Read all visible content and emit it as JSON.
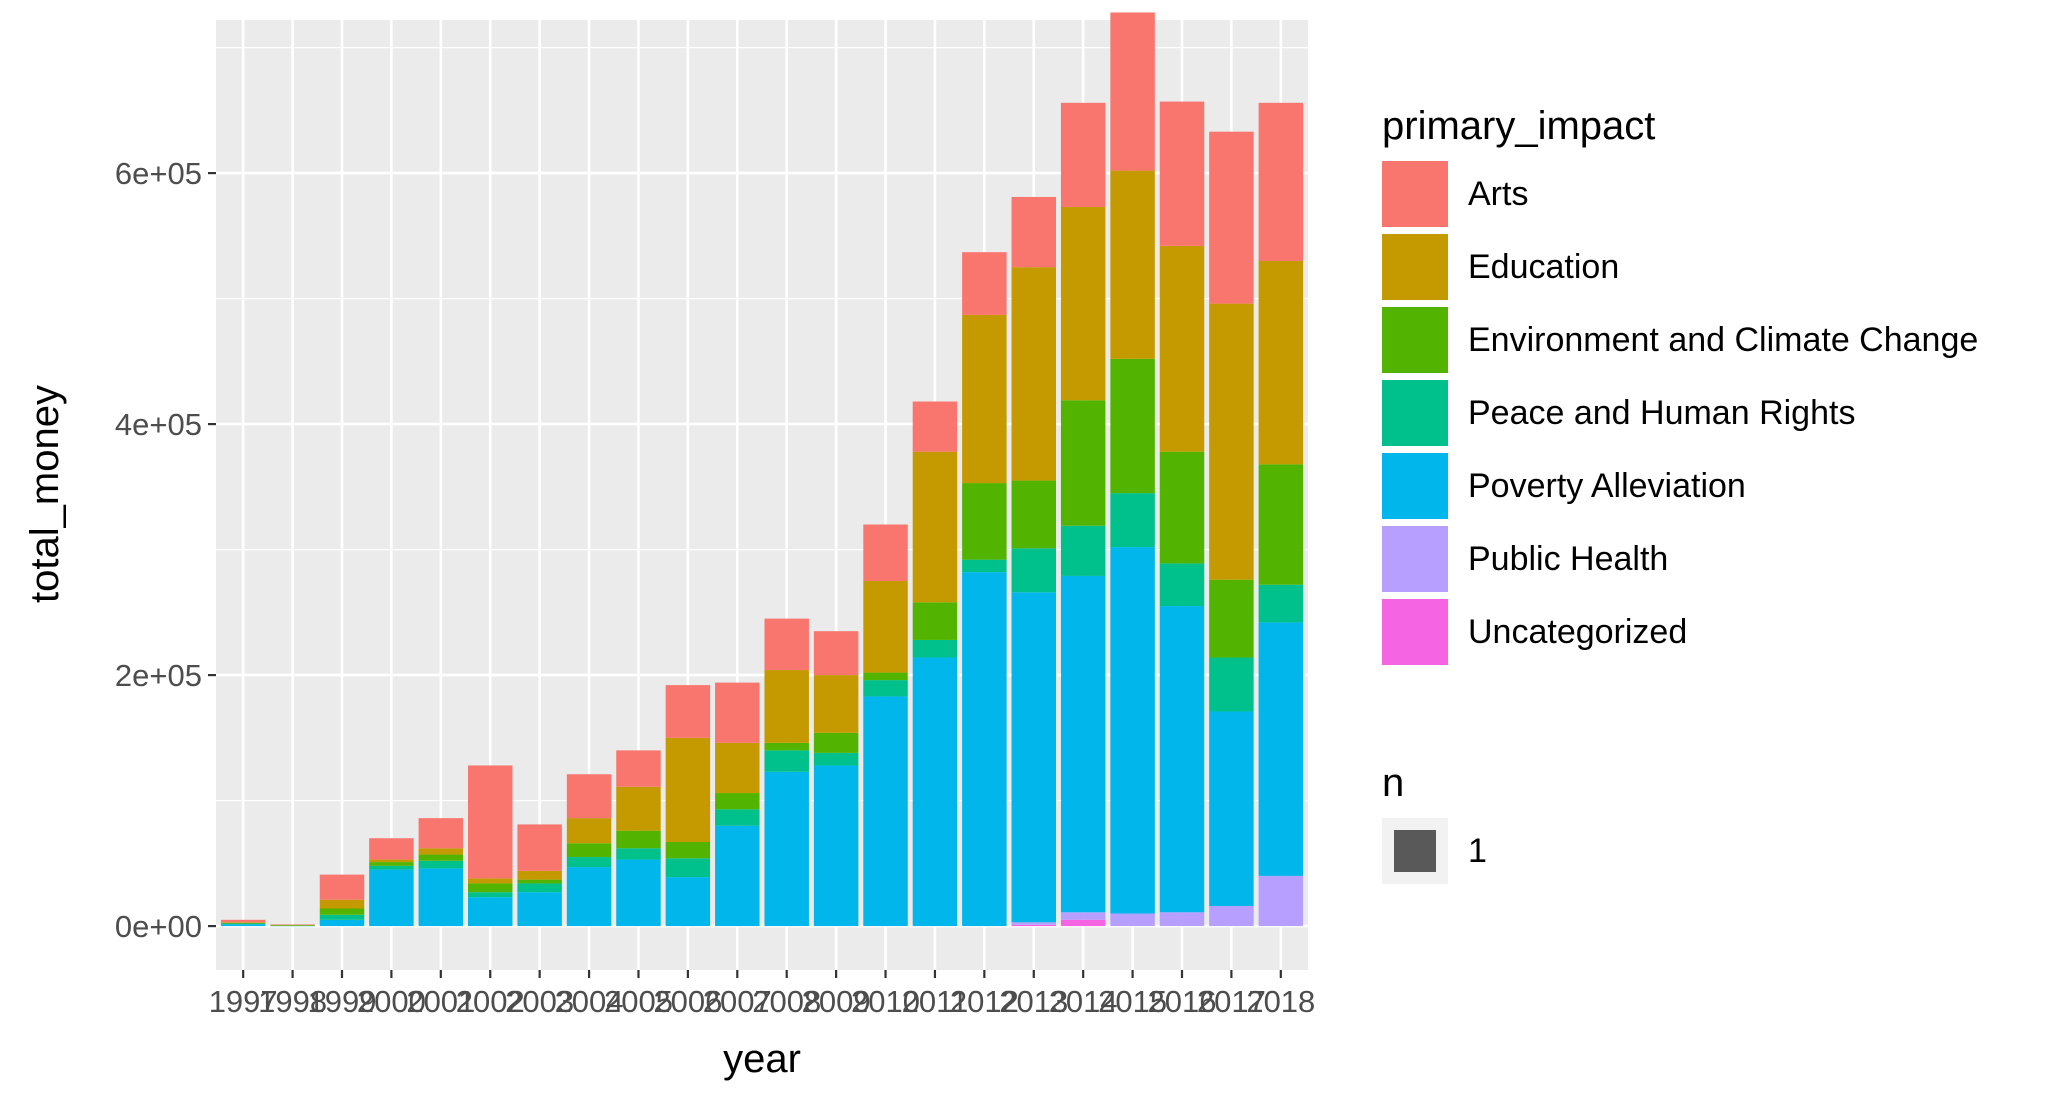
{
  "chart_data": {
    "type": "bar",
    "stacked": true,
    "xlabel": "year",
    "ylabel": "total_money",
    "ylim": [
      -35000,
      722000
    ],
    "y_ticks": [
      0,
      200000,
      400000,
      600000
    ],
    "y_tick_labels": [
      "0e+00",
      "2e+05",
      "4e+05",
      "6e+05"
    ],
    "grid": true,
    "legend_position": "right",
    "categories": [
      "1997",
      "1998",
      "1999",
      "2000",
      "2001",
      "2002",
      "2003",
      "2004",
      "2005",
      "2006",
      "2007",
      "2008",
      "2009",
      "2010",
      "2011",
      "2012",
      "2013",
      "2014",
      "2015",
      "2016",
      "2017",
      "2018"
    ],
    "series": [
      {
        "name": "Uncategorized",
        "color": "#F564E3",
        "values": [
          0,
          0,
          0,
          0,
          0,
          0,
          0,
          0,
          0,
          0,
          0,
          0,
          0,
          0,
          0,
          0,
          1000,
          5000,
          0,
          0,
          0,
          0
        ]
      },
      {
        "name": "Public Health",
        "color": "#B79FFF",
        "values": [
          0,
          0,
          0,
          0,
          0,
          0,
          0,
          0,
          0,
          0,
          0,
          0,
          0,
          0,
          0,
          0,
          2000,
          6000,
          10000,
          11000,
          16000,
          40000
        ]
      },
      {
        "name": "Poverty Alleviation",
        "color": "#00B6EB",
        "values": [
          1500,
          300,
          5000,
          45000,
          46000,
          23000,
          27000,
          47000,
          53000,
          39000,
          80000,
          123000,
          128000,
          183000,
          214000,
          282000,
          263000,
          268000,
          292000,
          244000,
          155000,
          202000
        ]
      },
      {
        "name": "Peace and Human Rights",
        "color": "#00C08B",
        "values": [
          500,
          200,
          4000,
          3000,
          6000,
          4000,
          7000,
          8000,
          9000,
          15000,
          13000,
          17000,
          10000,
          13000,
          14000,
          10000,
          35000,
          40000,
          43000,
          34000,
          43000,
          30000
        ]
      },
      {
        "name": "Environment and Climate Change",
        "color": "#53B400",
        "values": [
          500,
          100,
          5000,
          3000,
          5000,
          7000,
          3000,
          11000,
          14000,
          13000,
          13000,
          6000,
          16000,
          6000,
          30000,
          61000,
          54000,
          100000,
          107000,
          89000,
          62000,
          96000
        ]
      },
      {
        "name": "Education",
        "color": "#C49A00",
        "values": [
          500,
          500,
          7000,
          2000,
          5000,
          4000,
          7000,
          20000,
          35000,
          83000,
          40000,
          58000,
          46000,
          73000,
          120000,
          134000,
          170000,
          154000,
          150000,
          164000,
          220000,
          162000
        ]
      },
      {
        "name": "Arts",
        "color": "#F8766D",
        "values": [
          2000,
          200,
          20000,
          17000,
          24000,
          90000,
          37000,
          35000,
          29000,
          42000,
          48000,
          41000,
          35000,
          45000,
          40000,
          50000,
          56000,
          83000,
          126000,
          115000,
          137000,
          126000
        ]
      }
    ],
    "legend": {
      "title": "primary_impact",
      "entries": [
        "Arts",
        "Education",
        "Environment and Climate Change",
        "Peace and Human Rights",
        "Poverty Alleviation",
        "Public Health",
        "Uncategorized"
      ]
    },
    "size_legend": {
      "title": "n",
      "entries": [
        "1"
      ],
      "color": "#595959"
    },
    "panel_bg": "#EBEBEB",
    "grid_color": "#FFFFFF"
  }
}
